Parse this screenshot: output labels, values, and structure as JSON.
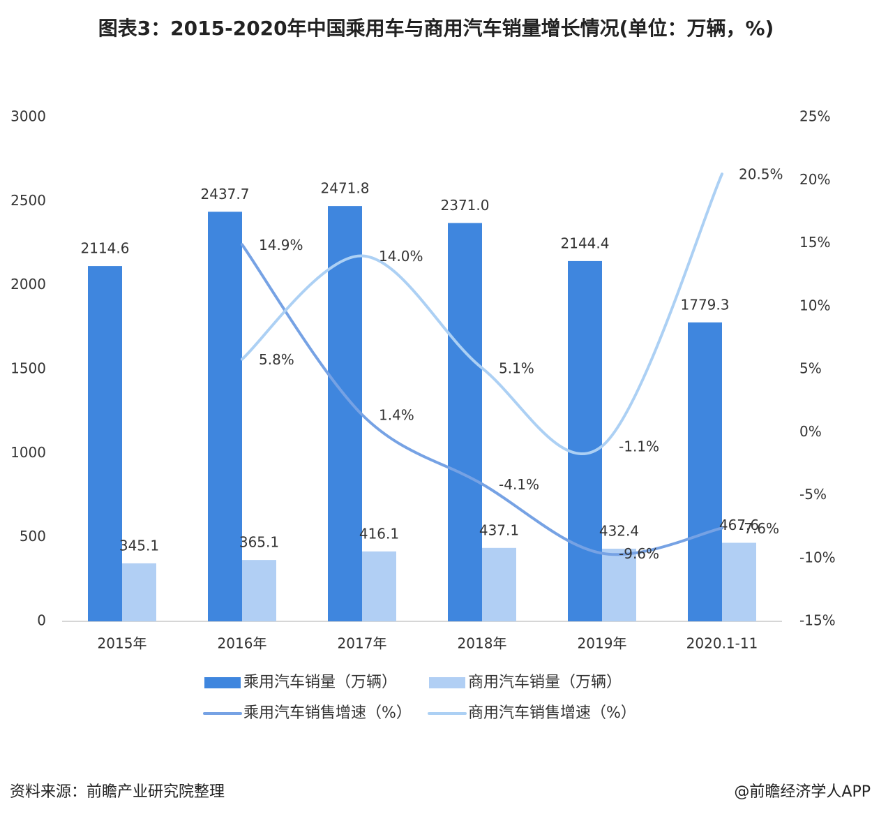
{
  "chart_data": {
    "type": "bar",
    "title": "图表3：2015-2020年中国乘用车与商用汽车销量增长情况(单位：万辆，%)",
    "source": "资料来源：前瞻产业研究院整理",
    "credit": "@前瞻经济学人APP",
    "categories": [
      "2015年",
      "2016年",
      "2017年",
      "2018年",
      "2019年",
      "2020.1-11"
    ],
    "series": [
      {
        "name": "乘用汽车销量（万辆）",
        "type": "bar",
        "color": "#3f86de",
        "values": [
          2114.6,
          2437.7,
          2471.8,
          2371.0,
          2144.4,
          1779.3
        ],
        "value_labels": [
          "2114.6",
          "2437.7",
          "2471.8",
          "2371.0",
          "2144.4",
          "1779.3"
        ]
      },
      {
        "name": "商用汽车销量（万辆）",
        "type": "bar",
        "color": "#b1cff4",
        "values": [
          345.1,
          365.1,
          416.1,
          437.1,
          432.4,
          467.6
        ],
        "value_labels": [
          "345.1",
          "365.1",
          "416.1",
          "437.1",
          "432.4",
          "467.6"
        ]
      },
      {
        "name": "乘用汽车销售增速（%）",
        "type": "line",
        "axis": "y2",
        "color": "#76a2e4",
        "values": [
          null,
          14.9,
          1.4,
          -4.1,
          -9.6,
          -7.6
        ],
        "value_labels": [
          null,
          "14.9%",
          "1.4%",
          "-4.1%",
          "-9.6%",
          "-7.6%"
        ]
      },
      {
        "name": "商用汽车销售增速（%）",
        "type": "line",
        "axis": "y2",
        "color": "#acd0f4",
        "values": [
          null,
          5.8,
          14.0,
          5.1,
          -1.1,
          20.5
        ],
        "value_labels": [
          null,
          "5.8%",
          "14.0%",
          "5.1%",
          "-1.1%",
          "20.5%"
        ]
      }
    ],
    "ylim": [
      0,
      3000
    ],
    "yticks": [
      0,
      500,
      1000,
      1500,
      2000,
      2500,
      3000
    ],
    "y2lim": [
      -15,
      25
    ],
    "y2ticks": [
      {
        "value": -15,
        "label": "-15%"
      },
      {
        "value": -10,
        "label": "-10%"
      },
      {
        "value": -5,
        "label": "-5%"
      },
      {
        "value": 0,
        "label": "0%"
      },
      {
        "value": 5,
        "label": "5%"
      },
      {
        "value": 10,
        "label": "10%"
      },
      {
        "value": 15,
        "label": "15%"
      },
      {
        "value": 20,
        "label": "20%"
      },
      {
        "value": 25,
        "label": "25%"
      }
    ],
    "grid": false
  }
}
